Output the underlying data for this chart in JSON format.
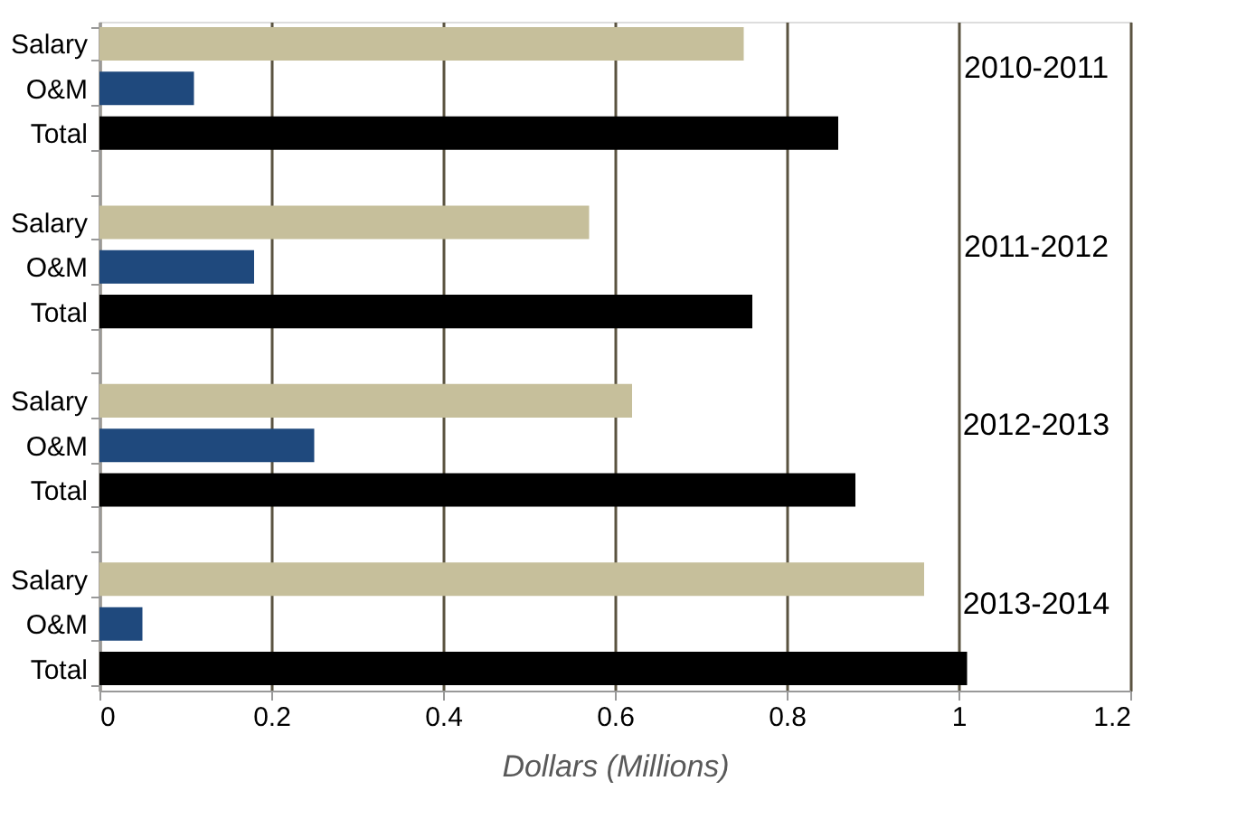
{
  "chart_data": {
    "type": "bar",
    "orientation": "horizontal",
    "categories": [
      "Salary",
      "O&M",
      "Total",
      null,
      "Salary",
      "O&M",
      "Total",
      null,
      "Salary",
      "O&M",
      "Total",
      null,
      "Salary",
      "O&M",
      "Total"
    ],
    "values": [
      0.75,
      0.11,
      0.86,
      null,
      0.57,
      0.18,
      0.76,
      null,
      0.62,
      0.25,
      0.88,
      null,
      0.96,
      0.05,
      1.01
    ],
    "colors": [
      "#c6bf9b",
      "#1f497d",
      "#000000",
      null,
      "#c6bf9b",
      "#1f497d",
      "#000000",
      null,
      "#c6bf9b",
      "#1f497d",
      "#000000",
      null,
      "#c6bf9b",
      "#1f497d",
      "#000000"
    ],
    "xlabel": "Dollars (Millions)",
    "xlim": [
      0,
      1.2
    ],
    "xticks": [
      0,
      0.2,
      0.4,
      0.6,
      0.8,
      1,
      1.2
    ],
    "grid": "x",
    "annotations": [
      "2010-2011",
      "2011-2012",
      "2012-2013",
      "2013-2014"
    ]
  }
}
